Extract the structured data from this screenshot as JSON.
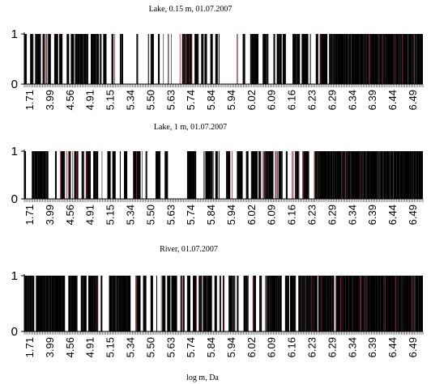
{
  "chart_data": [
    {
      "type": "bar",
      "title": "Lake, 0.15 m, 01.07.2007",
      "ylim": [
        0,
        1
      ],
      "yticks": [
        "0",
        "1"
      ],
      "xticks": [
        "1.71",
        "3.99",
        "4.56",
        "4.91",
        "5.15",
        "5.34",
        "5.50",
        "5.63",
        "5.74",
        "5.84",
        "5.94",
        "6.02",
        "6.09",
        "6.16",
        "6.23",
        "6.29",
        "6.34",
        "6.39",
        "6.44",
        "6.49"
      ],
      "seed": 11,
      "density": [
        0.55,
        0.45,
        0.5,
        0.4,
        0.45,
        0.35,
        0.45,
        0.4,
        0.45,
        0.4,
        0.5,
        0.55,
        0.7,
        0.75,
        0.8,
        0.85,
        0.95,
        0.98,
        0.98,
        0.98
      ]
    },
    {
      "type": "bar",
      "title": "Lake, 1 m, 01.07.2007",
      "ylim": [
        0,
        1
      ],
      "yticks": [
        "0",
        "1"
      ],
      "xticks": [
        "1.71",
        "3.99",
        "4.56",
        "4.91",
        "5.15",
        "5.34",
        "5.50",
        "5.63",
        "5.74",
        "5.84",
        "5.94",
        "6.02",
        "6.09",
        "6.16",
        "6.23",
        "6.29",
        "6.34",
        "6.39",
        "6.44",
        "6.49"
      ],
      "seed": 23,
      "density": [
        0.45,
        0.5,
        0.45,
        0.4,
        0.35,
        0.35,
        0.45,
        0.4,
        0.5,
        0.4,
        0.45,
        0.5,
        0.65,
        0.7,
        0.8,
        0.85,
        0.95,
        0.98,
        0.98,
        0.98
      ]
    },
    {
      "type": "bar",
      "title": "River,  01.07.2007",
      "ylim": [
        0,
        1
      ],
      "yticks": [
        "0",
        "1"
      ],
      "xticks": [
        "1.71",
        "3.99",
        "4.56",
        "4.91",
        "5.15",
        "5.34",
        "5.50",
        "5.63",
        "5.74",
        "5.84",
        "5.94",
        "6.02",
        "6.09",
        "6.16",
        "6.23",
        "6.29",
        "6.34",
        "6.39",
        "6.44",
        "6.49"
      ],
      "xlabel": "log m, Da",
      "seed": 37,
      "density": [
        0.55,
        0.5,
        0.55,
        0.45,
        0.5,
        0.55,
        0.6,
        0.55,
        0.65,
        0.6,
        0.65,
        0.7,
        0.8,
        0.85,
        0.9,
        0.9,
        0.97,
        0.99,
        0.99,
        0.99
      ]
    }
  ]
}
